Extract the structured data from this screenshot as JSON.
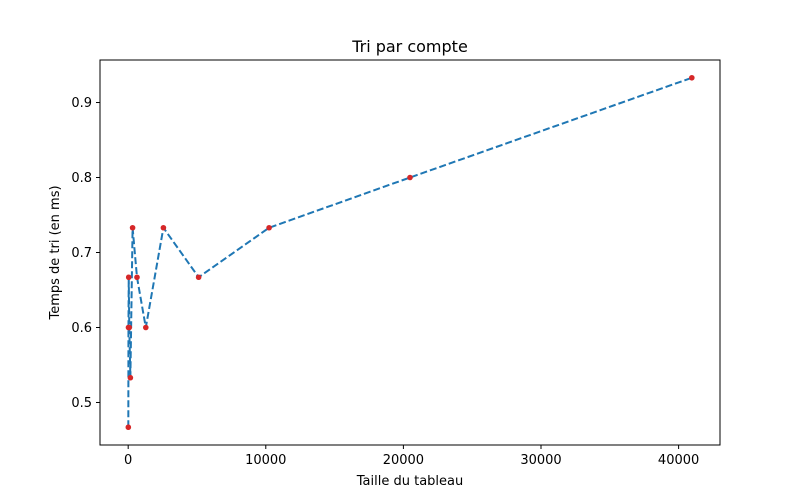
{
  "chart_data": {
    "type": "line",
    "title": "Tri par compte",
    "xlabel": "Taille du tableau",
    "ylabel": "Temps de tri (en ms)",
    "xlim": [
      -2048,
      43008
    ],
    "ylim": [
      0.4433,
      0.9567
    ],
    "xticks": [
      0,
      10000,
      20000,
      30000,
      40000
    ],
    "xtick_labels": [
      "0",
      "10000",
      "20000",
      "30000",
      "40000"
    ],
    "yticks": [
      0.5,
      0.6,
      0.7,
      0.8,
      0.9
    ],
    "ytick_labels": [
      "0.5",
      "0.6",
      "0.7",
      "0.8",
      "0.9"
    ],
    "grid": false,
    "series": [
      {
        "line_color": "#1f77b4",
        "line_style": "dashed",
        "marker_color": "#d62728",
        "x": [
          10,
          20,
          40,
          80,
          160,
          320,
          640,
          1280,
          2560,
          5120,
          10240,
          20480,
          40960
        ],
        "y": [
          0.467,
          0.6,
          0.667,
          0.6,
          0.533,
          0.733,
          0.667,
          0.6,
          0.733,
          0.667,
          0.733,
          0.8,
          0.933
        ]
      }
    ]
  }
}
